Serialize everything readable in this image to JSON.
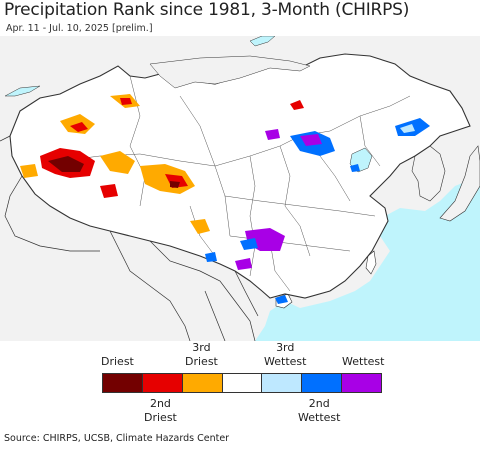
{
  "title": "Precipitation Rank since 1981, 3-Month (CHIRPS)",
  "subtitle": "Apr. 11 - Jul. 10, 2025 [prelim.]",
  "legend": {
    "top_labels": [
      {
        "text": "Driest"
      },
      {
        "text": "3rd\nDriest"
      },
      {
        "text": "3rd\nWettest"
      },
      {
        "text": "Wettest"
      }
    ],
    "bottom_labels": [
      {
        "text": "2nd\nDriest"
      },
      {
        "text": "2nd\nWettest"
      }
    ],
    "colors": [
      {
        "name": "driest",
        "hex": "#730000"
      },
      {
        "name": "2nd-driest",
        "hex": "#e60000"
      },
      {
        "name": "3rd-driest",
        "hex": "#ffaa00"
      },
      {
        "name": "normal",
        "hex": "#ffffff"
      },
      {
        "name": "3rd-wettest",
        "hex": "#bee8ff"
      },
      {
        "name": "2nd-wettest",
        "hex": "#0070ff"
      },
      {
        "name": "wettest",
        "hex": "#a800e6"
      }
    ]
  },
  "source": "Source: CHIRPS, UCSB, Climate Hazards Center",
  "colors": {
    "ocean": "#bff4fc",
    "land_outside": "#f2f2f2",
    "land_inside": "#ffffff",
    "border": "#333333"
  }
}
